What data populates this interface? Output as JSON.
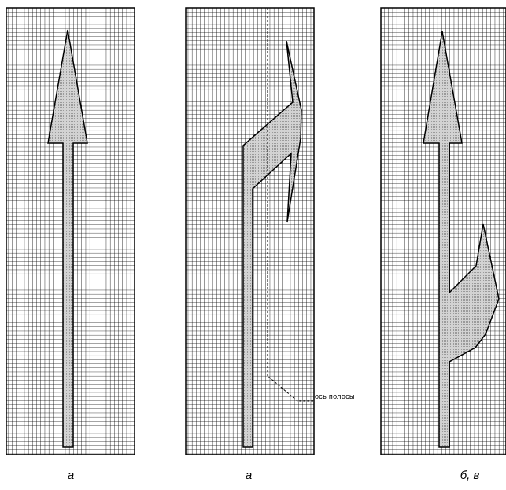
{
  "panels": [
    {
      "caption": "а"
    },
    {
      "caption": "а"
    },
    {
      "caption": "б, в"
    }
  ],
  "annotation": {
    "lane_axis_label": "ось полосы"
  },
  "colors": {
    "grid": "#000000",
    "background": "#ffffff",
    "arrow_fill": "#d2d2d2",
    "arrow_stroke": "#000000"
  }
}
